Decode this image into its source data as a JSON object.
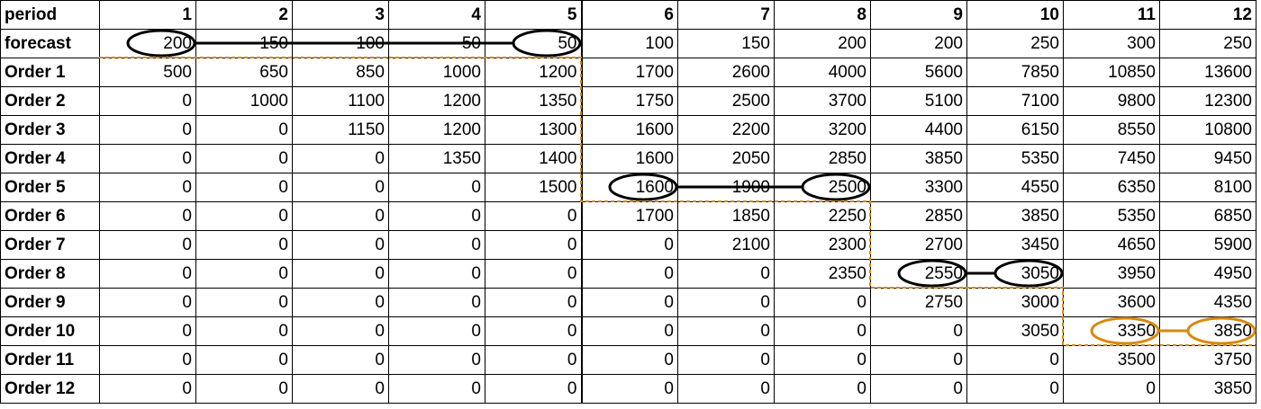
{
  "columns": [
    "period",
    "1",
    "2",
    "3",
    "4",
    "5",
    "6",
    "7",
    "8",
    "9",
    "10",
    "11",
    "12"
  ],
  "rows": [
    {
      "label": "forecast",
      "values": [
        "200",
        "150",
        "100",
        "50",
        "50",
        "100",
        "150",
        "200",
        "200",
        "250",
        "300",
        "250"
      ]
    },
    {
      "label": "Order 1",
      "values": [
        "500",
        "650",
        "850",
        "1000",
        "1200",
        "1700",
        "2600",
        "4000",
        "5600",
        "7850",
        "10850",
        "13600"
      ]
    },
    {
      "label": "Order 2",
      "values": [
        "0",
        "1000",
        "1100",
        "1200",
        "1350",
        "1750",
        "2500",
        "3700",
        "5100",
        "7100",
        "9800",
        "12300"
      ]
    },
    {
      "label": "Order 3",
      "values": [
        "0",
        "0",
        "1150",
        "1200",
        "1300",
        "1600",
        "2200",
        "3200",
        "4400",
        "6150",
        "8550",
        "10800"
      ]
    },
    {
      "label": "Order 4",
      "values": [
        "0",
        "0",
        "0",
        "1350",
        "1400",
        "1600",
        "2050",
        "2850",
        "3850",
        "5350",
        "7450",
        "9450"
      ]
    },
    {
      "label": "Order 5",
      "values": [
        "0",
        "0",
        "0",
        "0",
        "1500",
        "1600",
        "1900",
        "2500",
        "3300",
        "4550",
        "6350",
        "8100"
      ]
    },
    {
      "label": "Order 6",
      "values": [
        "0",
        "0",
        "0",
        "0",
        "0",
        "1700",
        "1850",
        "2250",
        "2850",
        "3850",
        "5350",
        "6850"
      ]
    },
    {
      "label": "Order 7",
      "values": [
        "0",
        "0",
        "0",
        "0",
        "0",
        "0",
        "2100",
        "2300",
        "2700",
        "3450",
        "4650",
        "5900"
      ]
    },
    {
      "label": "Order 8",
      "values": [
        "0",
        "0",
        "0",
        "0",
        "0",
        "0",
        "0",
        "2350",
        "2550",
        "3050",
        "3950",
        "4950"
      ]
    },
    {
      "label": "Order 9",
      "values": [
        "0",
        "0",
        "0",
        "0",
        "0",
        "0",
        "0",
        "0",
        "2750",
        "3000",
        "3600",
        "4350"
      ]
    },
    {
      "label": "Order 10",
      "values": [
        "0",
        "0",
        "0",
        "0",
        "0",
        "0",
        "0",
        "0",
        "0",
        "3050",
        "3350",
        "3850"
      ]
    },
    {
      "label": "Order 11",
      "values": [
        "0",
        "0",
        "0",
        "0",
        "0",
        "0",
        "0",
        "0",
        "0",
        "0",
        "3500",
        "3750"
      ]
    },
    {
      "label": "Order 12",
      "values": [
        "0",
        "0",
        "0",
        "0",
        "0",
        "0",
        "0",
        "0",
        "0",
        "0",
        "0",
        "3850"
      ]
    }
  ],
  "highlights": [
    {
      "row": 1,
      "from_period": 1,
      "to_period": 5,
      "color": "#000000"
    },
    {
      "row": 6,
      "from_period": 6,
      "to_period": 8,
      "color": "#000000"
    },
    {
      "row": 9,
      "from_period": 9,
      "to_period": 10,
      "color": "#000000"
    },
    {
      "row": 11,
      "from_period": 11,
      "to_period": 12,
      "color": "#d8890f"
    }
  ],
  "colors": {
    "grid": "#000000",
    "staircase": "#d8890f",
    "strike": "#000000"
  }
}
